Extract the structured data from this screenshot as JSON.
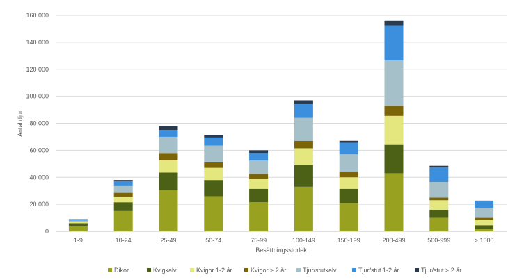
{
  "chart_data": {
    "type": "bar",
    "stacked": true,
    "title": "",
    "xlabel": "Besättningsstorlek",
    "ylabel": "Antal djur",
    "ylim": [
      0,
      160000
    ],
    "yticks": [
      "0",
      "20 000",
      "40 000",
      "60 000",
      "80 000",
      "100 000",
      "120 000",
      "140 000",
      "160 000"
    ],
    "ytick_values": [
      0,
      20000,
      40000,
      60000,
      80000,
      100000,
      120000,
      140000,
      160000
    ],
    "grid": true,
    "legend_position": "bottom",
    "categories": [
      "1-9",
      "10-24",
      "25-49",
      "50-74",
      "75-99",
      "100-149",
      "150-199",
      "200-499",
      "500-999",
      "> 1000"
    ],
    "series": [
      {
        "name": "Dikor",
        "color": "#98a120",
        "values": [
          4000,
          15500,
          30500,
          26000,
          21500,
          33000,
          21000,
          43000,
          10000,
          2000
        ]
      },
      {
        "name": "Kvigkalv",
        "color": "#4c6115",
        "values": [
          2000,
          6000,
          13000,
          12000,
          10000,
          16000,
          10500,
          21500,
          6000,
          2500
        ]
      },
      {
        "name": "Kvigor 1-2 år",
        "color": "#e3e77d",
        "values": [
          800,
          4000,
          9000,
          9000,
          7500,
          12500,
          8500,
          21000,
          7000,
          4000
        ]
      },
      {
        "name": "Kvigor > 2 år",
        "color": "#7b6508",
        "values": [
          500,
          3000,
          5500,
          4500,
          3500,
          5500,
          4000,
          7500,
          2000,
          1500
        ]
      },
      {
        "name": "Tjur/stutkalv",
        "color": "#a6c0c9",
        "values": [
          700,
          5500,
          12000,
          12000,
          10000,
          17000,
          13000,
          33500,
          11500,
          7500
        ]
      },
      {
        "name": "Tjur/stut 1-2 år",
        "color": "#3b8fdc",
        "values": [
          800,
          3000,
          5000,
          6000,
          5500,
          10500,
          8500,
          26000,
          11000,
          5000
        ]
      },
      {
        "name": "Tjur/stut > 2 år",
        "color": "#2a3a4f",
        "values": [
          200,
          1000,
          3000,
          2000,
          2000,
          2500,
          1500,
          3500,
          1000,
          200
        ]
      }
    ],
    "colors": {
      "grid": "#d9d9d9",
      "axis": "#bfbfbf",
      "text": "#595959"
    }
  }
}
